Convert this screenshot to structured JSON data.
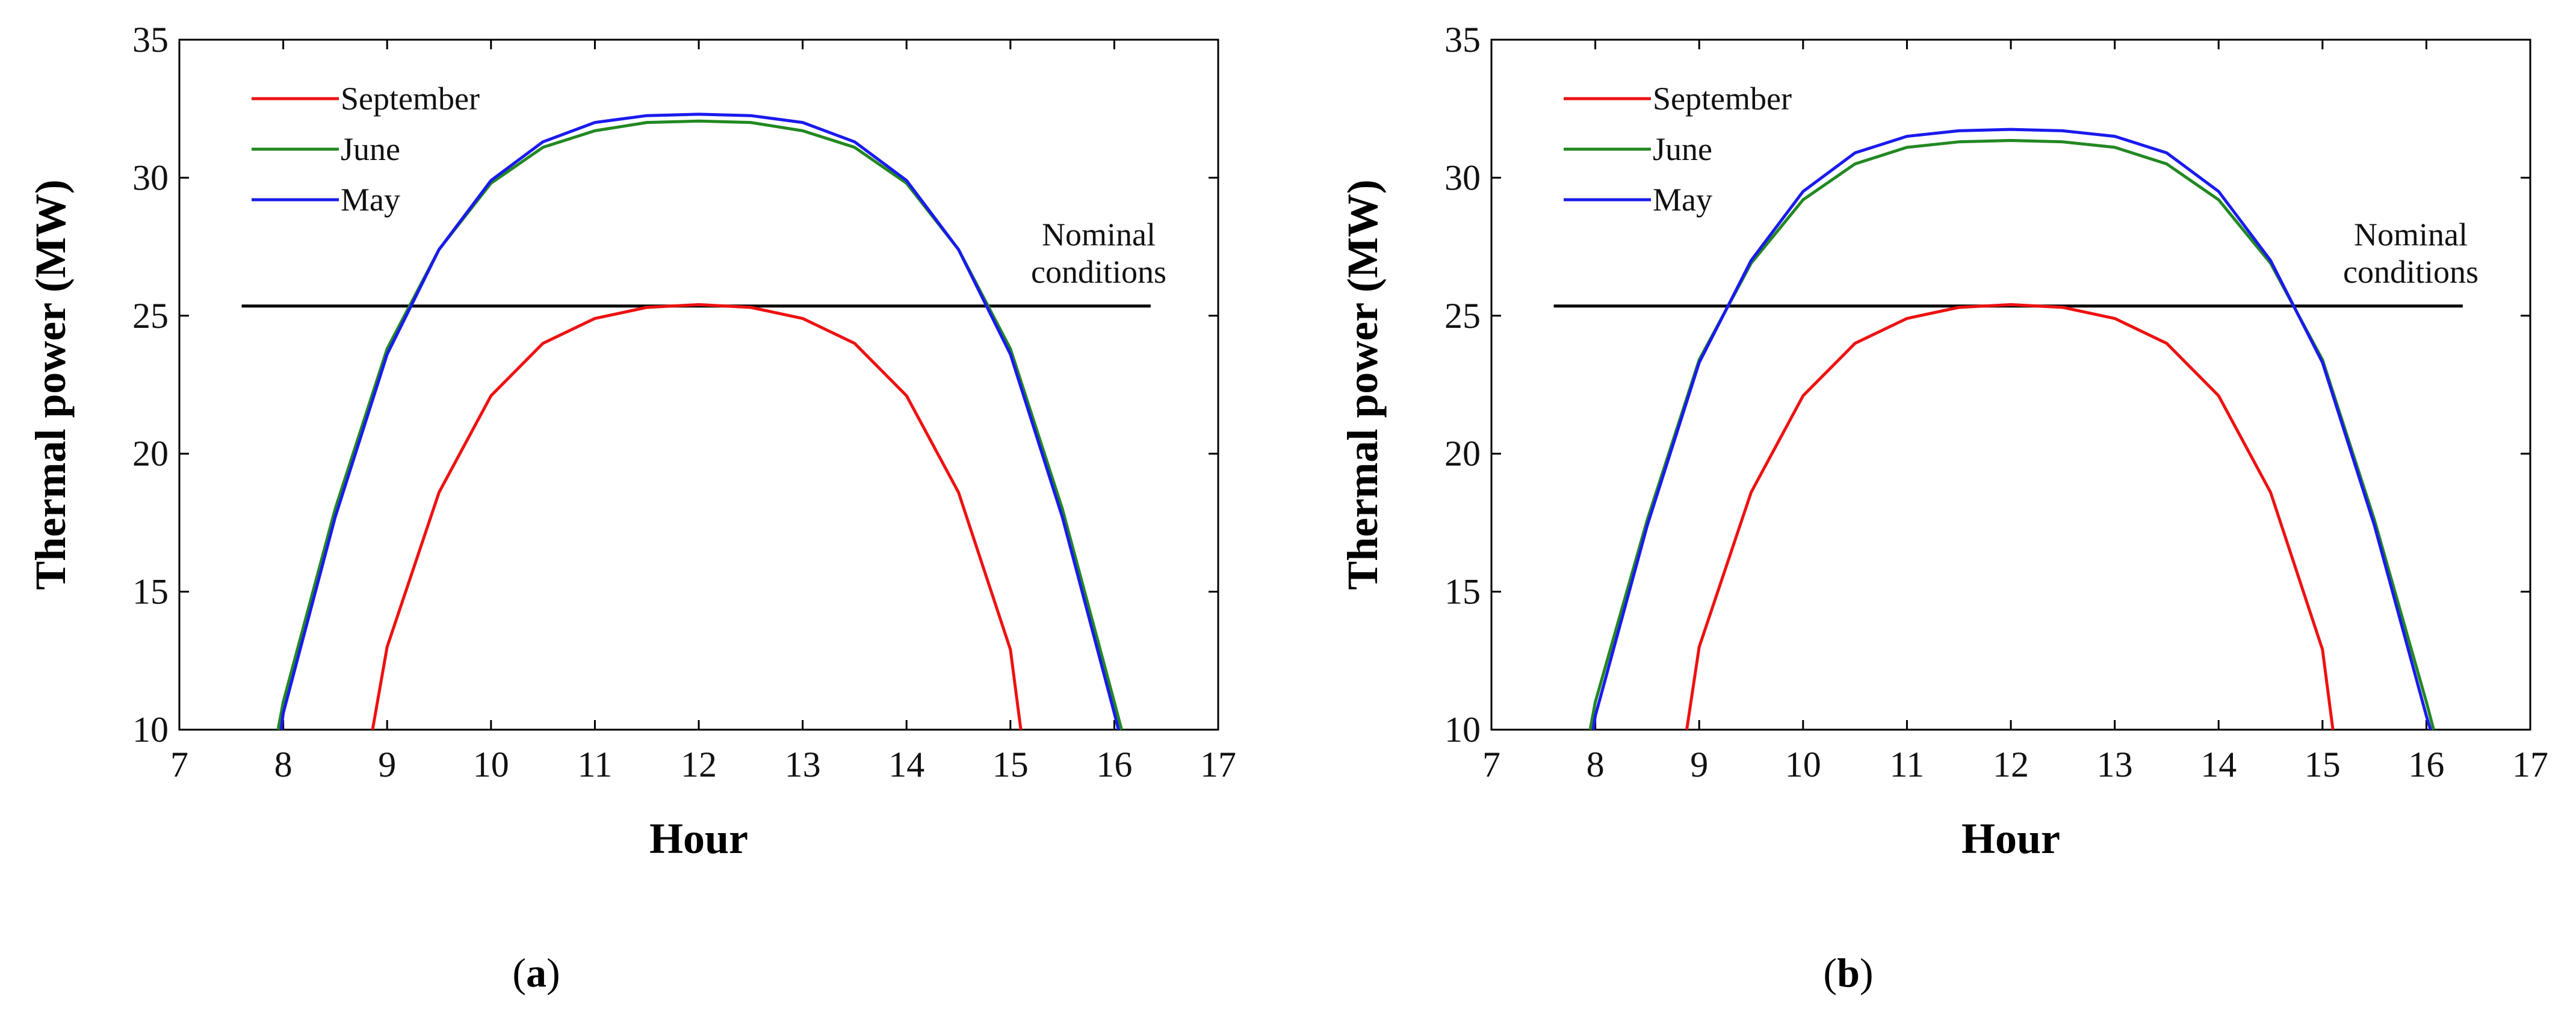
{
  "chart_data": [
    {
      "type": "line",
      "panel_label": "a",
      "xlabel": "Hour",
      "ylabel": "Thermal power (MW)",
      "xlim": [
        7,
        17
      ],
      "ylim": [
        10,
        35
      ],
      "xticks": [
        7,
        8,
        9,
        10,
        11,
        12,
        13,
        14,
        15,
        16,
        17
      ],
      "yticks": [
        10,
        15,
        20,
        25,
        30,
        35
      ],
      "legend_position": "top-left",
      "annotation": [
        "Nominal",
        "conditions"
      ],
      "reference_line": {
        "name": "Nominal conditions",
        "x": [
          7.6,
          16.35
        ],
        "y": 25.35,
        "color": "#000000"
      },
      "series": [
        {
          "name": "September",
          "color": "#ee1111",
          "x": [
            8.86,
            9.0,
            9.5,
            10.0,
            10.5,
            11.0,
            11.5,
            12.0,
            12.5,
            13.0,
            13.5,
            14.0,
            14.5,
            15.0,
            15.1
          ],
          "y": [
            10.0,
            13.0,
            18.6,
            22.1,
            24.0,
            24.9,
            25.3,
            25.4,
            25.3,
            24.9,
            24.0,
            22.1,
            18.6,
            12.9,
            10.0
          ]
        },
        {
          "name": "June",
          "color": "#228822",
          "x": [
            7.95,
            8.0,
            8.5,
            9.0,
            9.5,
            10.0,
            10.5,
            11.0,
            11.5,
            12.0,
            12.5,
            13.0,
            13.5,
            14.0,
            14.5,
            15.0,
            15.5,
            16.0,
            16.07
          ],
          "y": [
            10.0,
            11.0,
            18.0,
            23.8,
            27.4,
            29.8,
            31.1,
            31.7,
            32.0,
            32.05,
            32.0,
            31.7,
            31.1,
            29.8,
            27.4,
            23.8,
            18.0,
            11.0,
            10.0
          ]
        },
        {
          "name": "May",
          "color": "#1a1aee",
          "x": [
            7.98,
            8.0,
            8.5,
            9.0,
            9.5,
            10.0,
            10.5,
            11.0,
            11.5,
            12.0,
            12.5,
            13.0,
            13.5,
            14.0,
            14.5,
            15.0,
            15.5,
            16.0,
            16.04
          ],
          "y": [
            10.0,
            10.6,
            17.7,
            23.6,
            27.4,
            29.9,
            31.3,
            32.0,
            32.25,
            32.3,
            32.25,
            32.0,
            31.3,
            29.9,
            27.4,
            23.6,
            17.7,
            10.6,
            10.0
          ]
        }
      ]
    },
    {
      "type": "line",
      "panel_label": "b",
      "xlabel": "Hour",
      "ylabel": "Thermal power (MW)",
      "xlim": [
        7,
        17
      ],
      "ylim": [
        10,
        35
      ],
      "xticks": [
        7,
        8,
        9,
        10,
        11,
        12,
        13,
        14,
        15,
        16,
        17
      ],
      "yticks": [
        10,
        15,
        20,
        25,
        30,
        35
      ],
      "legend_position": "top-left",
      "annotation": [
        "Nominal",
        "conditions"
      ],
      "reference_line": {
        "name": "Nominal conditions",
        "x": [
          7.6,
          16.35
        ],
        "y": 25.35,
        "color": "#000000"
      },
      "series": [
        {
          "name": "September",
          "color": "#ee1111",
          "x": [
            8.88,
            9.0,
            9.5,
            10.0,
            10.5,
            11.0,
            11.5,
            12.0,
            12.5,
            13.0,
            13.5,
            14.0,
            14.5,
            15.0,
            15.1
          ],
          "y": [
            10.0,
            13.0,
            18.6,
            22.1,
            24.0,
            24.9,
            25.3,
            25.4,
            25.3,
            24.9,
            24.0,
            22.1,
            18.6,
            12.9,
            10.0
          ]
        },
        {
          "name": "June",
          "color": "#228822",
          "x": [
            7.95,
            8.0,
            8.5,
            9.0,
            9.5,
            10.0,
            10.5,
            11.0,
            11.5,
            12.0,
            12.5,
            13.0,
            13.5,
            14.0,
            14.5,
            15.0,
            15.5,
            16.0,
            16.07
          ],
          "y": [
            10.0,
            11.0,
            17.6,
            23.4,
            26.9,
            29.2,
            30.5,
            31.1,
            31.3,
            31.35,
            31.3,
            31.1,
            30.5,
            29.2,
            26.9,
            23.4,
            17.6,
            11.0,
            10.0
          ]
        },
        {
          "name": "May",
          "color": "#1a1aee",
          "x": [
            7.98,
            8.0,
            8.5,
            9.0,
            9.5,
            10.0,
            10.5,
            11.0,
            11.5,
            12.0,
            12.5,
            13.0,
            13.5,
            14.0,
            14.5,
            15.0,
            15.5,
            16.0,
            16.04
          ],
          "y": [
            10.0,
            10.5,
            17.4,
            23.3,
            27.0,
            29.5,
            30.9,
            31.5,
            31.7,
            31.75,
            31.7,
            31.5,
            30.9,
            29.5,
            27.0,
            23.3,
            17.4,
            10.5,
            10.0
          ]
        }
      ]
    }
  ]
}
